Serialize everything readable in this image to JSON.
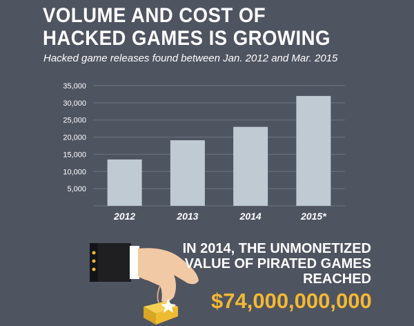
{
  "header": {
    "title_line1": "VOLUME AND COST OF",
    "title_line2": "HACKED GAMES IS GROWING",
    "subtitle": "Hacked game releases found between Jan. 2012 and Mar. 2015"
  },
  "callout": {
    "line1": "IN 2014, THE UNMONETIZED",
    "line2": "VALUE OF PIRATED GAMES",
    "line3": "REACHED",
    "amount": "$74,000,000,000"
  },
  "colors": {
    "background": "#4f5461",
    "bar": "#bfcad3",
    "grid": "#6e7380",
    "amount": "#f4b932"
  },
  "chart_data": {
    "type": "bar",
    "categories": [
      "2012",
      "2013",
      "2014",
      "2015*"
    ],
    "values": [
      13500,
      19100,
      23000,
      32000
    ],
    "title": "",
    "xlabel": "",
    "ylabel": "",
    "ylim": [
      0,
      35000
    ],
    "yticks": [
      5000,
      10000,
      15000,
      20000,
      25000,
      30000,
      35000
    ],
    "ytick_labels": [
      "5,000",
      "10,000",
      "15,000",
      "20,000",
      "25,000",
      "30,000",
      "35,000"
    ],
    "grid": true
  }
}
